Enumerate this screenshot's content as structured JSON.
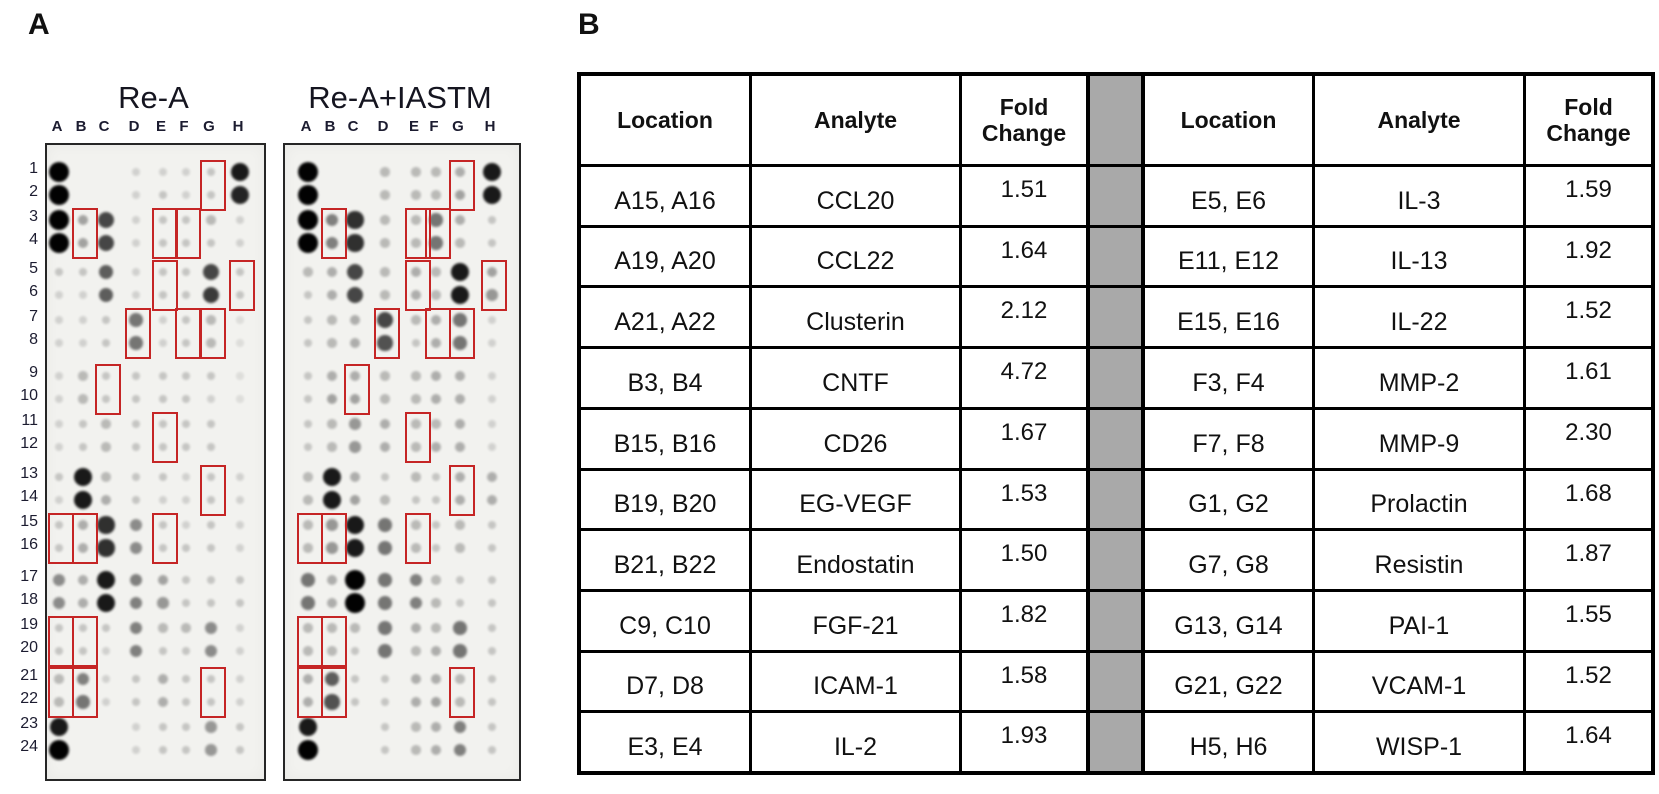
{
  "panel_a": {
    "label": "A",
    "column_letters": [
      "A",
      "B",
      "C",
      "D",
      "E",
      "F",
      "G",
      "H"
    ],
    "row_numbers": [
      "1",
      "2",
      "3",
      "4",
      "5",
      "6",
      "7",
      "8",
      "9",
      "10",
      "11",
      "12",
      "13",
      "14",
      "15",
      "16",
      "17",
      "18",
      "19",
      "20",
      "21",
      "22",
      "23",
      "24"
    ],
    "highlight_color": "#c52525",
    "highlight_boxes": [
      {
        "col": "G",
        "rows": [
          1,
          2
        ]
      },
      {
        "col": "B",
        "rows": [
          3,
          4
        ]
      },
      {
        "col": "E",
        "rows": [
          3,
          4
        ]
      },
      {
        "col": "F",
        "rows": [
          3,
          4
        ]
      },
      {
        "col": "E",
        "rows": [
          5,
          6
        ]
      },
      {
        "col": "H",
        "rows": [
          5,
          6
        ]
      },
      {
        "col": "D",
        "rows": [
          7,
          8
        ]
      },
      {
        "col": "F",
        "rows": [
          7,
          8
        ]
      },
      {
        "col": "G",
        "rows": [
          7,
          8
        ]
      },
      {
        "col": "C",
        "rows": [
          9,
          10
        ]
      },
      {
        "col": "E",
        "rows": [
          11,
          12
        ]
      },
      {
        "col": "G",
        "rows": [
          13,
          14
        ]
      },
      {
        "col": "A",
        "rows": [
          15,
          16
        ]
      },
      {
        "col": "B",
        "rows": [
          15,
          16
        ]
      },
      {
        "col": "E",
        "rows": [
          15,
          16
        ]
      },
      {
        "col": "A",
        "rows": [
          19,
          20
        ]
      },
      {
        "col": "B",
        "rows": [
          19,
          20
        ]
      },
      {
        "col": "A",
        "rows": [
          21,
          22
        ]
      },
      {
        "col": "B",
        "rows": [
          21,
          22
        ]
      },
      {
        "col": "G",
        "rows": [
          21,
          22
        ]
      }
    ],
    "blots": [
      {
        "title": "Re-A",
        "spot_intensities": [
          [
            10,
            0,
            0,
            1,
            1,
            1,
            1.5,
            9
          ],
          [
            10,
            0,
            0,
            1,
            1.5,
            1,
            1.5,
            8.5
          ],
          [
            10,
            3,
            7,
            1,
            1.5,
            1.5,
            2,
            1
          ],
          [
            10,
            3,
            7,
            1,
            1.5,
            1.5,
            1.5,
            1
          ],
          [
            1.5,
            1.5,
            6,
            1,
            1.5,
            1.5,
            7,
            1.5
          ],
          [
            1,
            1,
            6,
            1,
            1.5,
            1.5,
            7.5,
            1.5
          ],
          [
            1,
            1,
            1.5,
            5,
            1,
            1.5,
            2,
            0.5
          ],
          [
            1,
            1,
            1.5,
            5,
            1,
            1.5,
            2,
            0.5
          ],
          [
            1,
            2,
            1.5,
            1.5,
            1.5,
            1.5,
            1.5,
            0.5
          ],
          [
            1,
            2,
            1.5,
            1.5,
            1.5,
            1.5,
            1,
            0.5
          ],
          [
            1,
            1.5,
            2,
            1.5,
            1.5,
            1.5,
            1.5,
            0
          ],
          [
            1,
            1.5,
            2,
            1.5,
            1.5,
            1.5,
            1.5,
            0
          ],
          [
            1.5,
            9,
            2,
            1.5,
            1.5,
            1,
            1.5,
            1
          ],
          [
            1,
            9,
            2.5,
            1.5,
            1,
            1,
            1.5,
            1
          ],
          [
            1.5,
            2.5,
            8,
            4,
            1.5,
            1,
            1.5,
            1
          ],
          [
            1.5,
            2.5,
            8,
            4,
            1.5,
            1.5,
            1.5,
            1
          ],
          [
            4,
            2.5,
            9,
            4.5,
            3,
            1.5,
            1.5,
            1.5
          ],
          [
            4,
            2.5,
            9,
            4.5,
            3.5,
            1.5,
            1.5,
            1.5
          ],
          [
            1.5,
            1.5,
            1.5,
            4.5,
            2,
            2,
            4,
            1
          ],
          [
            1.5,
            1.5,
            1,
            4.5,
            1.5,
            1.5,
            4,
            1
          ],
          [
            2,
            4.5,
            1,
            1.5,
            2.5,
            1.5,
            1.5,
            1
          ],
          [
            2,
            5,
            1,
            1.5,
            2.5,
            1.5,
            1.5,
            1
          ],
          [
            9,
            0,
            0,
            1,
            1.5,
            1.5,
            3.5,
            1.5
          ],
          [
            10,
            0,
            0,
            1,
            1.5,
            1.5,
            3.5,
            1.5
          ]
        ]
      },
      {
        "title": "Re-A+IASTM",
        "spot_intensities": [
          [
            10,
            0,
            0,
            2,
            2,
            2,
            2.5,
            9
          ],
          [
            10,
            0,
            0,
            2,
            2,
            2,
            3,
            9
          ],
          [
            10,
            4.5,
            8,
            2,
            2,
            5,
            2.5,
            1.5
          ],
          [
            10,
            4.5,
            8,
            2,
            2,
            5,
            2,
            1.5
          ],
          [
            2,
            2.5,
            7,
            2,
            2.5,
            2,
            9,
            3
          ],
          [
            1.5,
            2.5,
            7,
            2,
            2.5,
            2,
            9,
            3.5
          ],
          [
            1.5,
            2,
            2.5,
            7,
            2,
            2.5,
            5,
            1
          ],
          [
            1.5,
            2,
            2.5,
            6.5,
            1.5,
            2.5,
            5,
            1
          ],
          [
            1.5,
            2.5,
            2.5,
            2,
            2,
            2.5,
            2.5,
            1
          ],
          [
            1.5,
            3,
            3,
            2,
            2,
            2.5,
            2.5,
            1
          ],
          [
            1.5,
            2,
            3.5,
            2.5,
            2,
            2,
            2.5,
            1
          ],
          [
            1.5,
            2,
            3.5,
            2.5,
            2,
            2.5,
            2.5,
            1
          ],
          [
            2,
            9,
            2.5,
            1.5,
            2,
            1.5,
            2.5,
            2.5
          ],
          [
            2,
            9,
            3,
            2,
            1.5,
            1.5,
            2.5,
            2.5
          ],
          [
            2,
            3.5,
            9,
            5,
            2,
            1.5,
            2,
            1.5
          ],
          [
            2,
            3.5,
            9,
            5,
            2,
            1.5,
            2,
            1.5
          ],
          [
            5,
            2.5,
            10,
            5,
            4.5,
            2,
            1.5,
            1.5
          ],
          [
            5,
            2.5,
            10,
            5,
            4.5,
            2,
            1.5,
            1.5
          ],
          [
            2,
            2,
            2,
            5,
            2.5,
            2,
            5,
            1.5
          ],
          [
            2,
            2,
            1.5,
            5,
            2,
            2.5,
            5,
            1.5
          ],
          [
            2.5,
            6,
            1.5,
            1.5,
            2.5,
            2.5,
            2,
            1.5
          ],
          [
            2.5,
            6.5,
            1.5,
            1.5,
            2.5,
            3,
            2,
            1.5
          ],
          [
            9,
            0,
            0,
            1.5,
            2,
            2.5,
            4.5,
            1.5
          ],
          [
            10,
            0,
            0,
            1.5,
            2,
            2.5,
            4.5,
            1.5
          ]
        ]
      }
    ]
  },
  "panel_b": {
    "label": "B",
    "columns": [
      "Location",
      "Analyte",
      "Fold Change"
    ],
    "spacer_color": "#a9a9a9",
    "tables": [
      {
        "rows": [
          {
            "location": "A15, A16",
            "analyte": "CCL20",
            "fold_change": "1.51"
          },
          {
            "location": "A19, A20",
            "analyte": "CCL22",
            "fold_change": "1.64"
          },
          {
            "location": "A21, A22",
            "analyte": "Clusterin",
            "fold_change": "2.12"
          },
          {
            "location": "B3, B4",
            "analyte": "CNTF",
            "fold_change": "4.72"
          },
          {
            "location": "B15, B16",
            "analyte": "CD26",
            "fold_change": "1.67"
          },
          {
            "location": "B19, B20",
            "analyte": "EG-VEGF",
            "fold_change": "1.53"
          },
          {
            "location": "B21, B22",
            "analyte": "Endostatin",
            "fold_change": "1.50"
          },
          {
            "location": "C9, C10",
            "analyte": "FGF-21",
            "fold_change": "1.82"
          },
          {
            "location": "D7, D8",
            "analyte": "ICAM-1",
            "fold_change": "1.58"
          },
          {
            "location": "E3, E4",
            "analyte": "IL-2",
            "fold_change": "1.93"
          }
        ]
      },
      {
        "rows": [
          {
            "location": "E5, E6",
            "analyte": "IL-3",
            "fold_change": "1.59"
          },
          {
            "location": "E11, E12",
            "analyte": "IL-13",
            "fold_change": "1.92"
          },
          {
            "location": "E15, E16",
            "analyte": "IL-22",
            "fold_change": "1.52"
          },
          {
            "location": "F3, F4",
            "analyte": "MMP-2",
            "fold_change": "1.61"
          },
          {
            "location": "F7, F8",
            "analyte": "MMP-9",
            "fold_change": "2.30"
          },
          {
            "location": "G1, G2",
            "analyte": "Prolactin",
            "fold_change": "1.68"
          },
          {
            "location": "G7, G8",
            "analyte": "Resistin",
            "fold_change": "1.87"
          },
          {
            "location": "G13, G14",
            "analyte": "PAI-1",
            "fold_change": "1.55"
          },
          {
            "location": "G21, G22",
            "analyte": "VCAM-1",
            "fold_change": "1.52"
          },
          {
            "location": "H5, H6",
            "analyte": "WISP-1",
            "fold_change": "1.64"
          }
        ]
      }
    ]
  }
}
